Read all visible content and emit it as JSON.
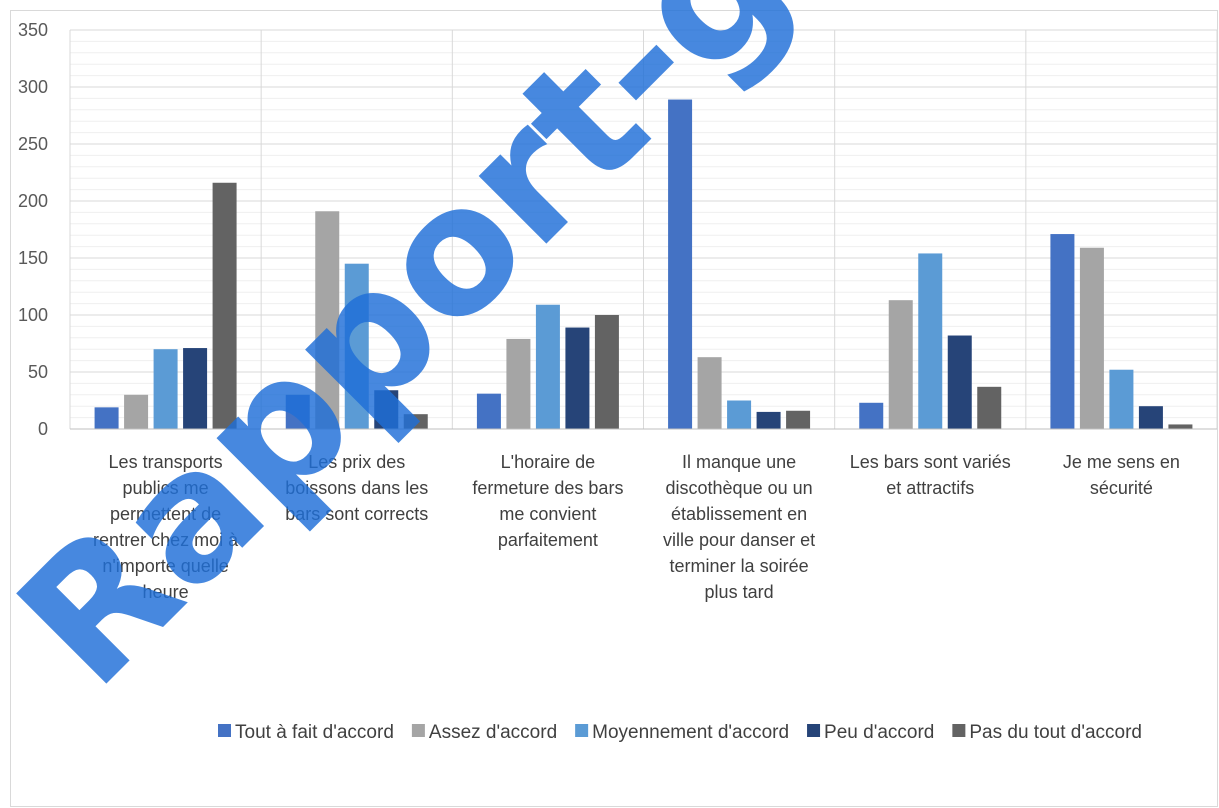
{
  "chart_data": {
    "type": "bar",
    "title": "",
    "xlabel": "",
    "ylabel": "",
    "ylim": [
      0,
      350
    ],
    "yticks": [
      0,
      50,
      100,
      150,
      200,
      250,
      300,
      350
    ],
    "grid": true,
    "legend_position": "bottom",
    "categories": [
      [
        "Les transports",
        "publics me",
        "permettent de",
        "rentrer chez moi à",
        "n'importe quelle",
        "heure"
      ],
      [
        "Les prix des",
        "boissons dans les",
        "bars sont corrects"
      ],
      [
        "L'horaire de",
        "fermeture des bars",
        "me convient",
        "parfaitement"
      ],
      [
        "Il manque une",
        "discothèque ou un",
        "établissement en",
        "ville pour danser et",
        "terminer la soirée",
        "plus tard"
      ],
      [
        "Les bars sont variés",
        "et attractifs"
      ],
      [
        "Je me sens en",
        "sécurité"
      ]
    ],
    "series": [
      {
        "name": "Tout à fait d'accord",
        "color": "#4472c4",
        "values": [
          19,
          30,
          31,
          289,
          23,
          171
        ]
      },
      {
        "name": "Assez d'accord",
        "color": "#a5a5a5",
        "values": [
          30,
          191,
          79,
          63,
          113,
          159
        ]
      },
      {
        "name": "Moyennement d'accord",
        "color": "#5b9bd5",
        "values": [
          70,
          145,
          109,
          25,
          154,
          52
        ]
      },
      {
        "name": "Peu d'accord",
        "color": "#264478",
        "values": [
          71,
          34,
          89,
          15,
          82,
          20
        ]
      },
      {
        "name": "Pas du tout d'accord",
        "color": "#636363",
        "values": [
          216,
          13,
          100,
          16,
          37,
          4
        ]
      }
    ]
  },
  "watermark": {
    "text": "Rapport-gratuit.com",
    "color": "#1f6fd8"
  }
}
